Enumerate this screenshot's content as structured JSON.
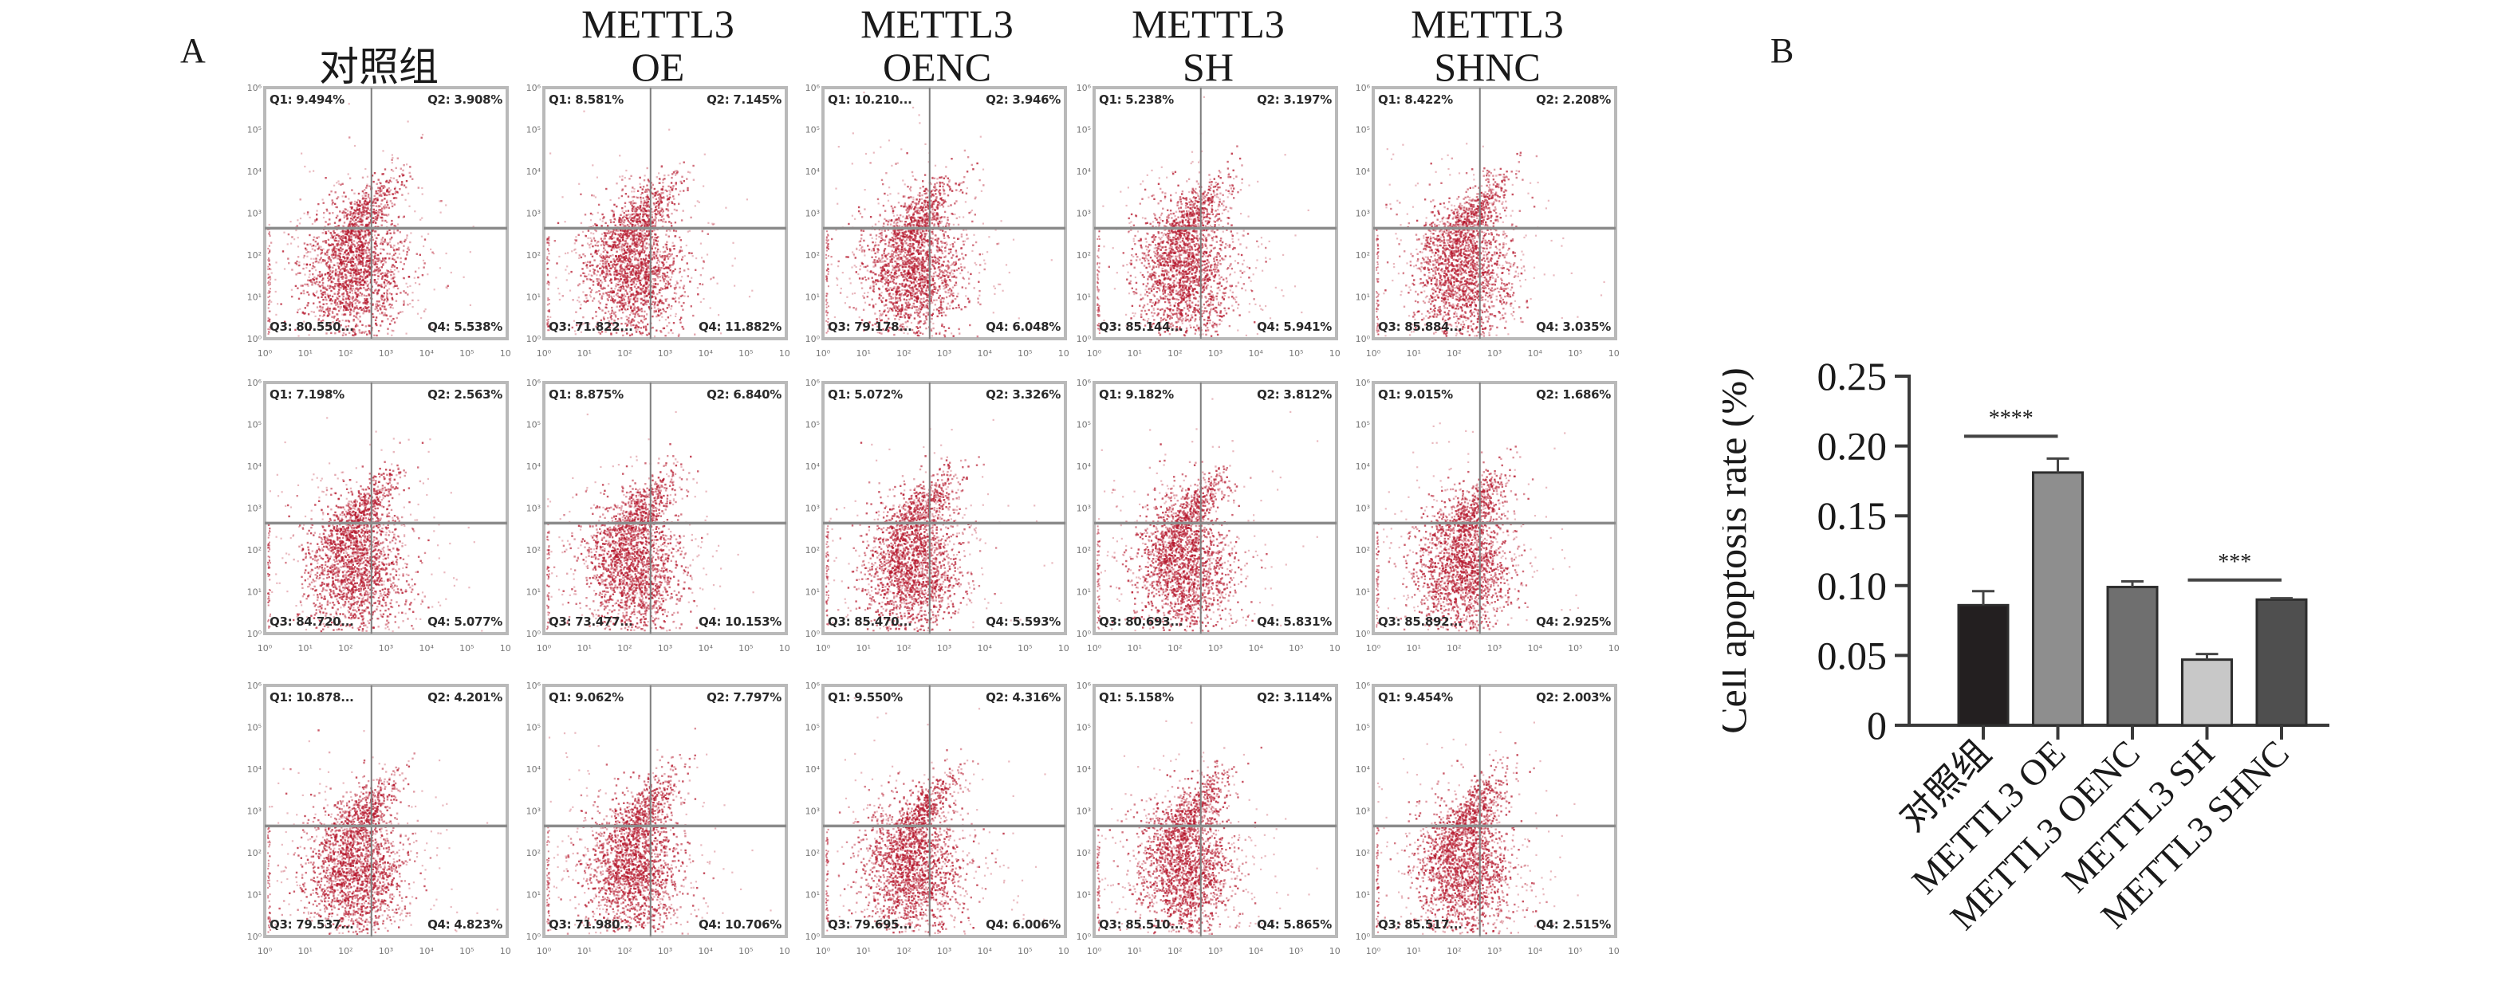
{
  "panel_labels": {
    "a": "A",
    "b": "B"
  },
  "flow_cytometry": {
    "columns": [
      "对照组",
      "METTL3\nOE",
      "METTL3\nOENC",
      "METTL3\nSH",
      "METTL3\nSHNC"
    ],
    "column_header_lines": [
      [
        "",
        "对照组"
      ],
      [
        "METTL3",
        "OE"
      ],
      [
        "METTL3",
        "OENC"
      ],
      [
        "METTL3",
        "SH"
      ],
      [
        "METTL3",
        "SHNC"
      ]
    ],
    "axis_ticks": [
      "10⁰",
      "10¹",
      "10²",
      "10³",
      "10⁴",
      "10⁵",
      "10⁶"
    ],
    "dot_color": "#b5162b",
    "rows": [
      [
        {
          "q1": "Q1: 9.494%",
          "q2": "Q2: 3.908%",
          "q3": "Q3: 80.550...",
          "q4": "Q4: 5.538%"
        },
        {
          "q1": "Q1: 8.581%",
          "q2": "Q2: 7.145%",
          "q3": "Q3: 71.822...",
          "q4": "Q4: 11.882%"
        },
        {
          "q1": "Q1: 10.210...",
          "q2": "Q2: 3.946%",
          "q3": "Q3: 79.178...",
          "q4": "Q4: 6.048%"
        },
        {
          "q1": "Q1: 5.238%",
          "q2": "Q2: 3.197%",
          "q3": "Q3: 85.144...",
          "q4": "Q4: 5.941%"
        },
        {
          "q1": "Q1: 8.422%",
          "q2": "Q2: 2.208%",
          "q3": "Q3: 85.884...",
          "q4": "Q4: 3.035%"
        }
      ],
      [
        {
          "q1": "Q1: 7.198%",
          "q2": "Q2: 2.563%",
          "q3": "Q3: 84.720...",
          "q4": "Q4: 5.077%"
        },
        {
          "q1": "Q1: 8.875%",
          "q2": "Q2: 6.840%",
          "q3": "Q3: 73.477...",
          "q4": "Q4: 10.153%"
        },
        {
          "q1": "Q1: 5.072%",
          "q2": "Q2: 3.326%",
          "q3": "Q3: 85.470...",
          "q4": "Q4: 5.593%"
        },
        {
          "q1": "Q1: 9.182%",
          "q2": "Q2: 3.812%",
          "q3": "Q3: 80.693...",
          "q4": "Q4: 5.831%"
        },
        {
          "q1": "Q1: 9.015%",
          "q2": "Q2: 1.686%",
          "q3": "Q3: 85.892...",
          "q4": "Q4: 2.925%"
        }
      ],
      [
        {
          "q1": "Q1: 10.878...",
          "q2": "Q2: 4.201%",
          "q3": "Q3: 79.537...",
          "q4": "Q4: 4.823%"
        },
        {
          "q1": "Q1: 9.062%",
          "q2": "Q2: 7.797%",
          "q3": "Q3: 71.980...",
          "q4": "Q4: 10.706%"
        },
        {
          "q1": "Q1: 9.550%",
          "q2": "Q2: 4.316%",
          "q3": "Q3: 79.695...",
          "q4": "Q4: 6.006%"
        },
        {
          "q1": "Q1: 5.158%",
          "q2": "Q2: 3.114%",
          "q3": "Q3: 85.510...",
          "q4": "Q4: 5.865%"
        },
        {
          "q1": "Q1: 9.454%",
          "q2": "Q2: 2.003%",
          "q3": "Q3: 85.517...",
          "q4": "Q4: 2.515%"
        }
      ]
    ]
  },
  "chart_data": {
    "type": "bar",
    "title": "",
    "xlabel": "",
    "ylabel": "Cell apoptosis rate (%)",
    "categories": [
      "对照组",
      "METTL3 OE",
      "METTL3 OENC",
      "METTL3 SH",
      "METTL3 SHNC"
    ],
    "values": [
      0.086,
      0.181,
      0.099,
      0.047,
      0.09
    ],
    "errors": [
      0.01,
      0.01,
      0.004,
      0.004,
      0.001
    ],
    "bar_colors": [
      "#231f20",
      "#8e8e8e",
      "#6f6f6f",
      "#c8c8c8",
      "#4f4f4f"
    ],
    "ylim": [
      0,
      0.25
    ],
    "yticks": [
      "0",
      "0.05",
      "0.10",
      "0.15",
      "0.20",
      "0.25"
    ],
    "ytick_values": [
      0,
      0.05,
      0.1,
      0.15,
      0.2,
      0.25
    ],
    "grid": false,
    "legend": "none",
    "significance": [
      {
        "from": 0,
        "to": 1,
        "label": "****",
        "y": 0.207
      },
      {
        "from": 3,
        "to": 4,
        "label": "***",
        "y": 0.104
      }
    ]
  }
}
